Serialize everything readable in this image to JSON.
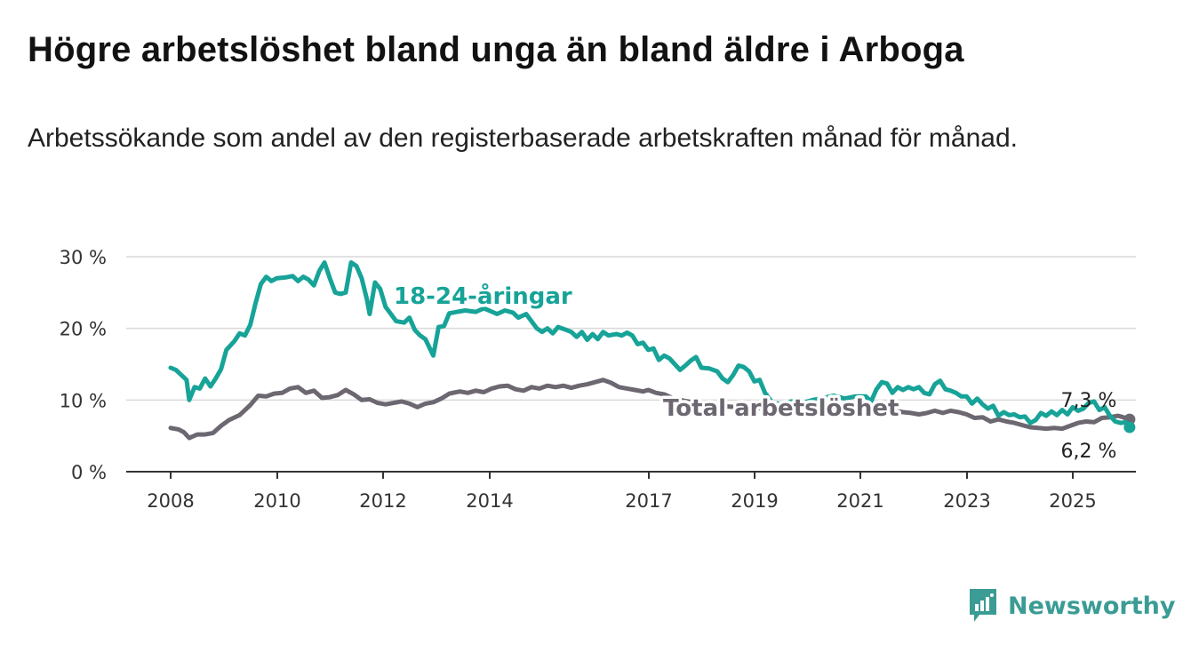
{
  "title": "Högre arbetslöshet bland unga än bland äldre i Arboga",
  "subtitle": "Arbetssökande som andel av den registerbaserade arbetskraften månad för månad.",
  "brand": {
    "name": "Newsworthy",
    "icon": "newsworthy-logo-icon"
  },
  "colors": {
    "youth": "#17a398",
    "total": "#6c6770",
    "grid": "#d9d9d9",
    "axis": "#333333"
  },
  "chart_data": {
    "type": "line",
    "title": "",
    "xlabel": "",
    "ylabel": "",
    "ylim": [
      0,
      30
    ],
    "xlim": [
      2007.75,
      2025.95
    ],
    "yticks": [
      0,
      10,
      20,
      30
    ],
    "ytick_labels": [
      "0 %",
      "10 %",
      "20 %",
      "30 %"
    ],
    "xticks": [
      2008,
      2010,
      2012,
      2014,
      2017,
      2019,
      2021,
      2023,
      2025
    ],
    "xtick_labels": [
      "2008",
      "2010",
      "2012",
      "2014",
      "2017",
      "2019",
      "2021",
      "2023",
      "2025"
    ],
    "grid": "horizontal",
    "series": [
      {
        "name": "18-24-åringar",
        "color": "#17a398",
        "end_label": "6,2 %",
        "points": [
          [
            2008.0,
            14.5
          ],
          [
            2008.1,
            14.2
          ],
          [
            2008.2,
            13.5
          ],
          [
            2008.3,
            12.8
          ],
          [
            2008.35,
            10.0
          ],
          [
            2008.45,
            11.8
          ],
          [
            2008.55,
            11.6
          ],
          [
            2008.65,
            13.0
          ],
          [
            2008.75,
            11.9
          ],
          [
            2008.85,
            13.0
          ],
          [
            2008.95,
            14.3
          ],
          [
            2009.05,
            17.0
          ],
          [
            2009.2,
            18.2
          ],
          [
            2009.3,
            19.3
          ],
          [
            2009.4,
            19.0
          ],
          [
            2009.5,
            20.5
          ],
          [
            2009.6,
            23.5
          ],
          [
            2009.7,
            26.2
          ],
          [
            2009.8,
            27.2
          ],
          [
            2009.9,
            26.6
          ],
          [
            2010.0,
            27.0
          ],
          [
            2010.15,
            27.1
          ],
          [
            2010.3,
            27.3
          ],
          [
            2010.4,
            26.6
          ],
          [
            2010.5,
            27.2
          ],
          [
            2010.6,
            26.8
          ],
          [
            2010.7,
            26.0
          ],
          [
            2010.8,
            28.0
          ],
          [
            2010.9,
            29.2
          ],
          [
            2011.0,
            27.0
          ],
          [
            2011.1,
            25.0
          ],
          [
            2011.2,
            24.8
          ],
          [
            2011.3,
            25.0
          ],
          [
            2011.4,
            29.2
          ],
          [
            2011.5,
            28.7
          ],
          [
            2011.6,
            27.0
          ],
          [
            2011.7,
            24.0
          ],
          [
            2011.75,
            22.0
          ],
          [
            2011.85,
            26.4
          ],
          [
            2011.95,
            25.5
          ],
          [
            2012.05,
            23.0
          ],
          [
            2012.15,
            22.0
          ],
          [
            2012.25,
            21.0
          ],
          [
            2012.4,
            20.8
          ],
          [
            2012.5,
            21.5
          ],
          [
            2012.6,
            19.8
          ],
          [
            2012.7,
            19.0
          ],
          [
            2012.8,
            18.5
          ],
          [
            2012.95,
            16.2
          ],
          [
            2013.05,
            20.2
          ],
          [
            2013.15,
            20.3
          ],
          [
            2013.25,
            22.1
          ],
          [
            2013.4,
            22.3
          ],
          [
            2013.55,
            22.5
          ],
          [
            2013.75,
            22.3
          ],
          [
            2013.9,
            22.8
          ],
          [
            2014.0,
            22.5
          ],
          [
            2014.15,
            22.0
          ],
          [
            2014.3,
            22.5
          ],
          [
            2014.45,
            22.2
          ],
          [
            2014.55,
            21.5
          ],
          [
            2014.7,
            22.0
          ],
          [
            2014.8,
            21.0
          ],
          [
            2014.9,
            20.0
          ],
          [
            2015.0,
            19.5
          ],
          [
            2015.1,
            20.0
          ],
          [
            2015.2,
            19.3
          ],
          [
            2015.3,
            20.2
          ],
          [
            2015.45,
            19.8
          ],
          [
            2015.55,
            19.5
          ],
          [
            2015.65,
            18.8
          ],
          [
            2015.75,
            19.5
          ],
          [
            2015.85,
            18.4
          ],
          [
            2015.95,
            19.2
          ],
          [
            2016.05,
            18.5
          ],
          [
            2016.15,
            19.5
          ],
          [
            2016.25,
            19.0
          ],
          [
            2016.4,
            19.2
          ],
          [
            2016.5,
            19.0
          ],
          [
            2016.6,
            19.4
          ],
          [
            2016.7,
            19.0
          ],
          [
            2016.8,
            17.8
          ],
          [
            2016.9,
            18.0
          ],
          [
            2017.0,
            17.0
          ],
          [
            2017.1,
            17.2
          ],
          [
            2017.2,
            15.6
          ],
          [
            2017.3,
            16.2
          ],
          [
            2017.4,
            15.8
          ],
          [
            2017.5,
            15.0
          ],
          [
            2017.6,
            14.2
          ],
          [
            2017.7,
            14.8
          ],
          [
            2017.8,
            15.5
          ],
          [
            2017.9,
            16.0
          ],
          [
            2018.0,
            14.5
          ],
          [
            2018.15,
            14.4
          ],
          [
            2018.3,
            14.0
          ],
          [
            2018.4,
            13.0
          ],
          [
            2018.5,
            12.5
          ],
          [
            2018.6,
            13.5
          ],
          [
            2018.7,
            14.8
          ],
          [
            2018.8,
            14.6
          ],
          [
            2018.9,
            14.0
          ],
          [
            2019.0,
            12.6
          ],
          [
            2019.1,
            12.8
          ],
          [
            2019.2,
            11.0
          ],
          [
            2019.35,
            9.5
          ],
          [
            2019.5,
            9.5
          ],
          [
            2019.7,
            9.8
          ],
          [
            2019.9,
            9.6
          ],
          [
            2020.1,
            10.0
          ],
          [
            2020.3,
            10.3
          ],
          [
            2020.5,
            10.6
          ],
          [
            2020.7,
            10.2
          ],
          [
            2020.9,
            10.5
          ],
          [
            2021.1,
            10.5
          ],
          [
            2021.2,
            9.8
          ],
          [
            2021.3,
            11.5
          ],
          [
            2021.4,
            12.5
          ],
          [
            2021.5,
            12.3
          ],
          [
            2021.6,
            11.0
          ],
          [
            2021.7,
            11.8
          ],
          [
            2021.8,
            11.4
          ],
          [
            2021.9,
            11.8
          ],
          [
            2022.0,
            11.5
          ],
          [
            2022.1,
            11.8
          ],
          [
            2022.2,
            11.0
          ],
          [
            2022.3,
            10.8
          ],
          [
            2022.4,
            12.2
          ],
          [
            2022.5,
            12.7
          ],
          [
            2022.6,
            11.5
          ],
          [
            2022.7,
            11.3
          ],
          [
            2022.8,
            11.0
          ],
          [
            2022.9,
            10.5
          ],
          [
            2023.0,
            10.5
          ],
          [
            2023.1,
            9.5
          ],
          [
            2023.2,
            10.2
          ],
          [
            2023.3,
            9.4
          ],
          [
            2023.4,
            8.8
          ],
          [
            2023.5,
            9.2
          ],
          [
            2023.6,
            7.8
          ],
          [
            2023.7,
            8.3
          ],
          [
            2023.8,
            7.9
          ],
          [
            2023.9,
            8.0
          ],
          [
            2024.0,
            7.6
          ],
          [
            2024.1,
            7.7
          ],
          [
            2024.2,
            6.8
          ],
          [
            2024.3,
            7.2
          ],
          [
            2024.4,
            8.2
          ],
          [
            2024.5,
            7.8
          ],
          [
            2024.6,
            8.4
          ],
          [
            2024.7,
            7.9
          ],
          [
            2024.8,
            8.6
          ],
          [
            2024.9,
            8.0
          ],
          [
            2025.0,
            9.0
          ],
          [
            2025.1,
            8.5
          ],
          [
            2025.2,
            8.8
          ],
          [
            2025.3,
            9.6
          ],
          [
            2025.4,
            9.8
          ],
          [
            2025.5,
            8.6
          ],
          [
            2025.6,
            9.0
          ],
          [
            2025.7,
            7.8
          ],
          [
            2025.8,
            7.0
          ],
          [
            2025.9,
            6.8
          ],
          [
            2026.0,
            6.9
          ],
          [
            2026.07,
            6.2
          ]
        ]
      },
      {
        "name": "Total arbetslöshet",
        "color": "#6c6770",
        "end_label": "7,3 %",
        "points": [
          [
            2008.0,
            6.1
          ],
          [
            2008.15,
            5.9
          ],
          [
            2008.25,
            5.5
          ],
          [
            2008.35,
            4.7
          ],
          [
            2008.5,
            5.2
          ],
          [
            2008.65,
            5.2
          ],
          [
            2008.8,
            5.4
          ],
          [
            2008.95,
            6.4
          ],
          [
            2009.1,
            7.2
          ],
          [
            2009.3,
            7.9
          ],
          [
            2009.5,
            9.3
          ],
          [
            2009.65,
            10.6
          ],
          [
            2009.8,
            10.5
          ],
          [
            2009.95,
            10.9
          ],
          [
            2010.1,
            11.0
          ],
          [
            2010.25,
            11.6
          ],
          [
            2010.4,
            11.8
          ],
          [
            2010.55,
            11.0
          ],
          [
            2010.7,
            11.3
          ],
          [
            2010.85,
            10.3
          ],
          [
            2011.0,
            10.4
          ],
          [
            2011.15,
            10.7
          ],
          [
            2011.3,
            11.4
          ],
          [
            2011.45,
            10.8
          ],
          [
            2011.6,
            10.0
          ],
          [
            2011.75,
            10.1
          ],
          [
            2011.9,
            9.6
          ],
          [
            2012.05,
            9.4
          ],
          [
            2012.2,
            9.6
          ],
          [
            2012.35,
            9.8
          ],
          [
            2012.5,
            9.5
          ],
          [
            2012.65,
            9.0
          ],
          [
            2012.8,
            9.5
          ],
          [
            2012.95,
            9.7
          ],
          [
            2013.1,
            10.2
          ],
          [
            2013.25,
            10.9
          ],
          [
            2013.45,
            11.2
          ],
          [
            2013.6,
            11.0
          ],
          [
            2013.75,
            11.3
          ],
          [
            2013.9,
            11.1
          ],
          [
            2014.05,
            11.6
          ],
          [
            2014.2,
            11.9
          ],
          [
            2014.35,
            12.0
          ],
          [
            2014.5,
            11.5
          ],
          [
            2014.65,
            11.3
          ],
          [
            2014.8,
            11.8
          ],
          [
            2014.95,
            11.6
          ],
          [
            2015.1,
            12.0
          ],
          [
            2015.25,
            11.8
          ],
          [
            2015.4,
            12.0
          ],
          [
            2015.55,
            11.7
          ],
          [
            2015.7,
            12.0
          ],
          [
            2015.85,
            12.2
          ],
          [
            2016.0,
            12.5
          ],
          [
            2016.15,
            12.8
          ],
          [
            2016.3,
            12.4
          ],
          [
            2016.45,
            11.8
          ],
          [
            2016.6,
            11.6
          ],
          [
            2016.75,
            11.4
          ],
          [
            2016.9,
            11.2
          ],
          [
            2017.0,
            11.4
          ],
          [
            2017.15,
            11.0
          ],
          [
            2017.3,
            10.8
          ],
          [
            2017.45,
            10.3
          ],
          [
            2017.6,
            10.0
          ],
          [
            2017.75,
            9.8
          ],
          [
            2017.9,
            9.6
          ],
          [
            2018.05,
            9.4
          ],
          [
            2018.2,
            9.3
          ],
          [
            2018.35,
            9.2
          ],
          [
            2018.5,
            9.1
          ],
          [
            2018.65,
            9.0
          ],
          [
            2018.8,
            9.1
          ],
          [
            2018.95,
            8.8
          ],
          [
            2019.1,
            8.9
          ],
          [
            2019.25,
            8.6
          ],
          [
            2019.4,
            8.5
          ],
          [
            2019.55,
            8.6
          ],
          [
            2019.7,
            8.4
          ],
          [
            2019.85,
            8.5
          ],
          [
            2020.0,
            8.3
          ],
          [
            2020.15,
            8.5
          ],
          [
            2020.3,
            8.6
          ],
          [
            2020.45,
            8.4
          ],
          [
            2020.6,
            8.5
          ],
          [
            2020.75,
            8.3
          ],
          [
            2020.9,
            8.5
          ],
          [
            2021.05,
            8.5
          ],
          [
            2021.2,
            8.6
          ],
          [
            2021.35,
            8.8
          ],
          [
            2021.5,
            8.7
          ],
          [
            2021.65,
            8.5
          ],
          [
            2021.8,
            8.3
          ],
          [
            2021.95,
            8.2
          ],
          [
            2022.1,
            8.0
          ],
          [
            2022.25,
            8.2
          ],
          [
            2022.4,
            8.5
          ],
          [
            2022.55,
            8.2
          ],
          [
            2022.7,
            8.5
          ],
          [
            2022.85,
            8.3
          ],
          [
            2023.0,
            8.0
          ],
          [
            2023.15,
            7.5
          ],
          [
            2023.3,
            7.6
          ],
          [
            2023.45,
            7.0
          ],
          [
            2023.6,
            7.3
          ],
          [
            2023.75,
            7.0
          ],
          [
            2023.9,
            6.8
          ],
          [
            2024.05,
            6.5
          ],
          [
            2024.2,
            6.2
          ],
          [
            2024.35,
            6.1
          ],
          [
            2024.5,
            6.0
          ],
          [
            2024.65,
            6.1
          ],
          [
            2024.8,
            6.0
          ],
          [
            2024.95,
            6.4
          ],
          [
            2025.1,
            6.8
          ],
          [
            2025.25,
            7.0
          ],
          [
            2025.4,
            6.9
          ],
          [
            2025.55,
            7.5
          ],
          [
            2025.7,
            7.6
          ],
          [
            2025.85,
            7.8
          ],
          [
            2025.95,
            7.6
          ],
          [
            2026.07,
            7.3
          ]
        ]
      }
    ]
  }
}
